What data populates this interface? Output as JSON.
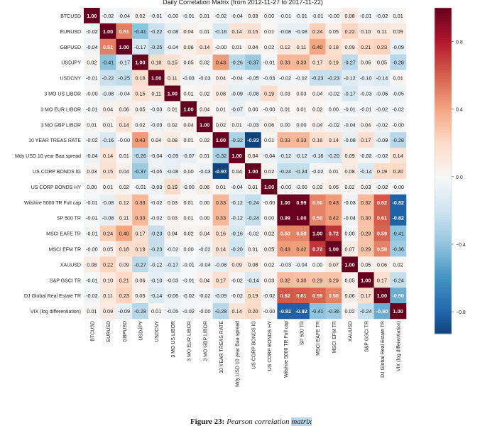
{
  "chart_data": {
    "type": "heatmap",
    "title": "Daily Correlation Matrix (from 2012-11-27 to 2017-11-22)",
    "labels": [
      "BTCUSD",
      "EURUSD",
      "GBPUSD",
      "USDJPY",
      "USDCNY",
      "3 MO US LIBOR",
      "3 MO EUR LIBOR",
      "3 MO GBP LIBOR",
      "10 YEAR TREAS RATE",
      "Mdy USD 10 year Baa spread",
      "US CORP BONDS IG",
      "US CORP BONDS HY",
      "Wilshire 5000 TR Full cap",
      "SP 500 TR",
      "MSCI EAFE TR",
      "MSCI EFM TR",
      "XAUUSD",
      "S&P GSCI TR",
      "DJ Global Real Estate TR",
      "VIX (log differentiation)"
    ],
    "values": [
      [
        "1.00",
        "-0.02",
        "-0.04",
        "0.02",
        "-0.01",
        "-0.00",
        "-0.01",
        "0.01",
        "-0.02",
        "-0.04",
        "0.03",
        "0.00",
        "-0.01",
        "-0.01",
        "-0.01",
        "-0.00",
        "0.08",
        "-0.01",
        "-0.02",
        "0.01"
      ],
      [
        "-0.02",
        "1.00",
        "0.51",
        "-0.41",
        "-0.22",
        "-0.08",
        "0.04",
        "0.01",
        "-0.16",
        "0.14",
        "0.15",
        "0.01",
        "-0.08",
        "-0.08",
        "0.24",
        "0.05",
        "0.22",
        "0.10",
        "0.11",
        "0.09"
      ],
      [
        "-0.04",
        "0.51",
        "1.00",
        "-0.17",
        "-0.25",
        "-0.04",
        "0.06",
        "0.14",
        "-0.00",
        "0.01",
        "0.04",
        "0.02",
        "0.12",
        "0.11",
        "0.40",
        "0.18",
        "0.09",
        "0.21",
        "0.23",
        "-0.09"
      ],
      [
        "0.02",
        "-0.41",
        "-0.17",
        "1.00",
        "0.18",
        "0.15",
        "0.05",
        "0.02",
        "0.43",
        "-0.26",
        "-0.37",
        "-0.01",
        "0.33",
        "0.33",
        "0.17",
        "0.19",
        "-0.27",
        "0.06",
        "0.05",
        "-0.28"
      ],
      [
        "-0.01",
        "-0.22",
        "-0.25",
        "0.18",
        "1.00",
        "0.11",
        "-0.03",
        "-0.03",
        "0.04",
        "-0.04",
        "-0.05",
        "-0.03",
        "-0.02",
        "-0.02",
        "-0.23",
        "-0.23",
        "-0.12",
        "-0.10",
        "-0.14",
        "0.01"
      ],
      [
        "-0.00",
        "-0.08",
        "-0.04",
        "0.15",
        "0.11",
        "1.00",
        "0.01",
        "0.02",
        "0.08",
        "-0.09",
        "-0.08",
        "0.19",
        "0.03",
        "0.03",
        "0.04",
        "-0.02",
        "-0.17",
        "-0.03",
        "-0.06",
        "-0.05"
      ],
      [
        "-0.01",
        "0.04",
        "0.06",
        "0.05",
        "-0.03",
        "0.01",
        "1.00",
        "0.04",
        "0.01",
        "-0.07",
        "0.00",
        "-0.00",
        "0.01",
        "0.01",
        "0.02",
        "0.00",
        "-0.01",
        "-0.01",
        "-0.02",
        "-0.02"
      ],
      [
        "0.01",
        "0.01",
        "0.14",
        "0.02",
        "-0.03",
        "0.02",
        "0.04",
        "1.00",
        "0.02",
        "0.01",
        "-0.03",
        "0.06",
        "0.00",
        "0.00",
        "0.04",
        "-0.02",
        "-0.04",
        "0.04",
        "-0.02",
        "-0.00"
      ],
      [
        "-0.02",
        "-0.16",
        "-0.00",
        "0.43",
        "0.04",
        "0.08",
        "0.01",
        "0.02",
        "1.00",
        "-0.32",
        "-0.93",
        "0.01",
        "0.33",
        "0.33",
        "0.16",
        "0.14",
        "-0.08",
        "0.17",
        "-0.09",
        "-0.28"
      ],
      [
        "-0.04",
        "0.14",
        "0.01",
        "-0.26",
        "-0.04",
        "-0.09",
        "-0.07",
        "0.01",
        "-0.32",
        "1.00",
        "0.04",
        "-0.04",
        "-0.12",
        "-0.12",
        "-0.16",
        "-0.20",
        "0.09",
        "-0.02",
        "-0.02",
        "0.14"
      ],
      [
        "0.03",
        "0.15",
        "0.04",
        "-0.37",
        "-0.05",
        "-0.08",
        "0.00",
        "-0.03",
        "-0.93",
        "0.04",
        "1.00",
        "0.02",
        "-0.24",
        "-0.24",
        "-0.02",
        "0.01",
        "0.08",
        "-0.14",
        "0.19",
        "0.20"
      ],
      [
        "0.00",
        "0.01",
        "0.02",
        "-0.01",
        "-0.03",
        "0.19",
        "-0.00",
        "0.06",
        "0.01",
        "-0.04",
        "0.01",
        "1.00",
        "-0.00",
        "-0.00",
        "0.02",
        "0.05",
        "0.02",
        "0.03",
        "-0.02",
        "-0.00"
      ],
      [
        "-0.01",
        "-0.08",
        "0.12",
        "0.33",
        "-0.02",
        "0.03",
        "0.01",
        "0.00",
        "0.33",
        "-0.12",
        "-0.24",
        "-0.00",
        "1.00",
        "0.99",
        "0.50",
        "0.43",
        "-0.03",
        "0.32",
        "0.62",
        "-0.82"
      ],
      [
        "-0.01",
        "-0.08",
        "0.11",
        "0.33",
        "-0.02",
        "0.03",
        "0.01",
        "0.00",
        "0.33",
        "-0.12",
        "-0.24",
        "0.00",
        "0.99",
        "1.00",
        "0.50",
        "0.42",
        "-0.04",
        "0.30",
        "0.61",
        "-0.82"
      ],
      [
        "-0.01",
        "0.24",
        "0.40",
        "0.17",
        "-0.23",
        "0.04",
        "0.02",
        "0.04",
        "0.16",
        "-0.16",
        "-0.02",
        "0.02",
        "0.50",
        "0.50",
        "1.00",
        "0.72",
        "0.00",
        "0.29",
        "0.59",
        "-0.41"
      ],
      [
        "-0.00",
        "0.05",
        "0.18",
        "0.19",
        "-0.23",
        "-0.02",
        "0.00",
        "-0.02",
        "0.14",
        "-0.20",
        "0.01",
        "0.05",
        "0.43",
        "0.42",
        "0.72",
        "1.00",
        "0.07",
        "0.29",
        "0.50",
        "-0.36"
      ],
      [
        "0.08",
        "0.22",
        "0.09",
        "-0.27",
        "-0.12",
        "-0.17",
        "-0.01",
        "-0.04",
        "-0.08",
        "0.09",
        "0.08",
        "0.02",
        "-0.03",
        "-0.04",
        "0.00",
        "0.07",
        "1.00",
        "0.05",
        "0.06",
        "0.02"
      ],
      [
        "-0.01",
        "0.10",
        "0.21",
        "0.06",
        "-0.10",
        "-0.03",
        "-0.01",
        "0.04",
        "0.17",
        "-0.02",
        "-0.14",
        "0.03",
        "0.32",
        "0.30",
        "0.29",
        "0.29",
        "0.05",
        "1.00",
        "0.17",
        "-0.24"
      ],
      [
        "-0.02",
        "0.11",
        "0.23",
        "0.05",
        "-0.14",
        "-0.06",
        "-0.02",
        "-0.02",
        "-0.09",
        "-0.02",
        "0.19",
        "-0.02",
        "0.62",
        "0.61",
        "0.59",
        "0.50",
        "0.06",
        "0.17",
        "1.00",
        "-0.50"
      ],
      [
        "0.01",
        "0.09",
        "-0.09",
        "-0.28",
        "0.01",
        "-0.05",
        "-0.02",
        "-0.00",
        "-0.28",
        "0.14",
        "0.20",
        "-0.00",
        "-0.82",
        "-0.82",
        "-0.41",
        "-0.36",
        "0.02",
        "-0.24",
        "-0.50",
        "1.00"
      ]
    ],
    "colorbar": {
      "ticks": [
        "0.8",
        "0.4",
        "0.0",
        "−0.4",
        "−0.8"
      ],
      "tick_values": [
        0.8,
        0.4,
        0.0,
        -0.4,
        -0.8
      ],
      "range": [
        -0.93,
        1.0
      ],
      "colors": {
        "negative": "#053061",
        "zero": "#f7f7f7",
        "positive": "#67001f"
      }
    }
  },
  "caption": {
    "figure_label": "Figure 23:",
    "text": "Pearson correlation",
    "highlight": "matrix"
  }
}
